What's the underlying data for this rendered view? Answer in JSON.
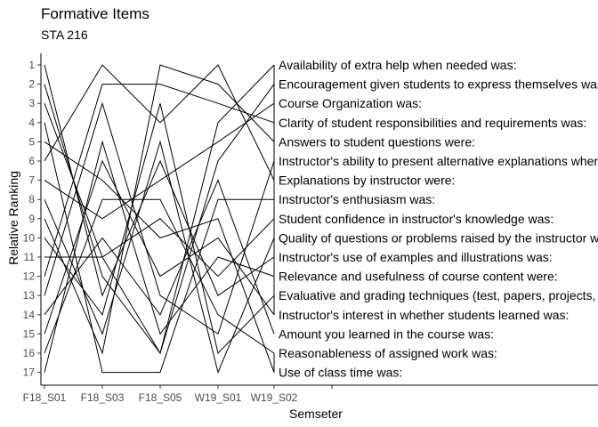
{
  "chart_data": {
    "type": "line",
    "title": "Formative Items",
    "subtitle": "STA 216",
    "xlabel": "Semseter",
    "ylabel": "Relative Ranking",
    "x": [
      "F18_S01",
      "F18_S03",
      "F18_S05",
      "W19_S01",
      "W19_S02"
    ],
    "y_ticks": [
      1,
      2,
      3,
      4,
      5,
      6,
      7,
      8,
      9,
      10,
      11,
      12,
      13,
      14,
      15,
      16,
      17
    ],
    "ylim": [
      17,
      1
    ],
    "y_reversed": true,
    "grid": false,
    "legend": "none",
    "series": [
      {
        "name": "Availability of extra help when needed was:",
        "values": [
          9,
          16,
          1,
          2,
          5
        ]
      },
      {
        "name": "Encouragement given students to express themselves was:",
        "values": [
          3,
          11,
          16,
          4,
          1
        ]
      },
      {
        "name": "Course Organization was:",
        "values": [
          6,
          1,
          4,
          1,
          7
        ]
      },
      {
        "name": "Clarity of student responsibilities and requirements was:",
        "values": [
          12,
          2,
          2,
          3,
          4
        ]
      },
      {
        "name": "Answers to student questions were:",
        "values": [
          8,
          15,
          5,
          17,
          10
        ]
      },
      {
        "name": "Instructor's ability to present alternative explanations when needed was:",
        "values": [
          10,
          14,
          3,
          16,
          13
        ]
      },
      {
        "name": "Explanations by instructor were:",
        "values": [
          2,
          12,
          16,
          6,
          2
        ]
      },
      {
        "name": "Instructor's enthusiasm was:",
        "values": [
          17,
          5,
          15,
          11,
          12
        ]
      },
      {
        "name": "Student confidence in instructor's knowledge was:",
        "values": [
          1,
          13,
          6,
          13,
          11
        ]
      },
      {
        "name": "Quality of questions or problems raised by the instructor were:",
        "values": [
          7,
          9,
          7,
          5,
          3
        ]
      },
      {
        "name": "Instructor's use of examples and illustrations was:",
        "values": [
          4,
          17,
          17,
          8,
          8
        ]
      },
      {
        "name": "Relevance and usefulness of course content were:",
        "values": [
          15,
          6,
          12,
          10,
          14
        ]
      },
      {
        "name": "Evaluative and grading techniques (test, papers, projects, etc.) were:",
        "values": [
          11,
          11,
          9,
          12,
          9
        ]
      },
      {
        "name": "Instructor's interest in whether students learned was:",
        "values": [
          13,
          3,
          13,
          15,
          6
        ]
      },
      {
        "name": "Amount you learned in the course was:",
        "values": [
          14,
          10,
          14,
          7,
          15
        ]
      },
      {
        "name": "Reasonableness of assigned work was:",
        "values": [
          5,
          7,
          10,
          9,
          17
        ]
      },
      {
        "name": "Use of class time was:",
        "values": [
          16,
          8,
          8,
          14,
          16
        ]
      }
    ]
  }
}
